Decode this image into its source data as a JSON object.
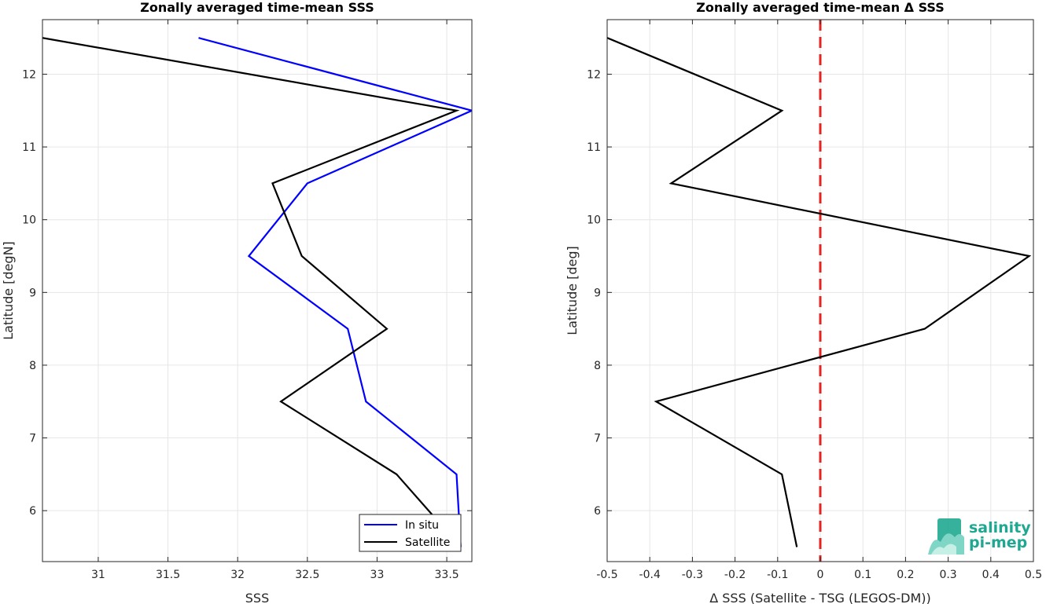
{
  "chart_data": [
    {
      "type": "line",
      "title": "Zonally averaged time-mean SSS",
      "xlabel": "SSS",
      "ylabel": "Latitude [degN]",
      "xlim": [
        30.6,
        33.68
      ],
      "ylim": [
        5.3,
        12.75
      ],
      "xticks": [
        31,
        31.5,
        32,
        32.5,
        33,
        33.5
      ],
      "xtick_labels": [
        "31",
        "31.5",
        "32",
        "32.5",
        "33",
        "33.5"
      ],
      "yticks": [
        6,
        7,
        8,
        9,
        10,
        11,
        12
      ],
      "ytick_labels": [
        "6",
        "7",
        "8",
        "9",
        "10",
        "11",
        "12"
      ],
      "grid": true,
      "legend_position": "bottom-right",
      "series": [
        {
          "name": "In situ",
          "color": "#0000ff",
          "x": [
            31.72,
            33.68,
            32.5,
            32.08,
            32.79,
            32.92,
            33.57,
            33.6
          ],
          "y": [
            12.5,
            11.5,
            10.5,
            9.5,
            8.5,
            7.5,
            6.5,
            5.5
          ]
        },
        {
          "name": "Satellite",
          "color": "#000000",
          "x": [
            30.6,
            33.57,
            32.25,
            32.46,
            33.07,
            32.31,
            33.14,
            33.6
          ],
          "y": [
            12.5,
            11.5,
            10.5,
            9.5,
            8.5,
            7.5,
            6.5,
            5.5
          ]
        }
      ]
    },
    {
      "type": "line",
      "title": "Zonally averaged time-mean Δ SSS",
      "xlabel": "Δ SSS (Satellite - TSG (LEGOS-DM))",
      "ylabel": "Latitude [deg]",
      "xlim": [
        -0.5,
        0.5
      ],
      "ylim": [
        5.3,
        12.75
      ],
      "xticks": [
        -0.5,
        -0.4,
        -0.3,
        -0.2,
        -0.1,
        0,
        0.1,
        0.2,
        0.3,
        0.4,
        0.5
      ],
      "xtick_labels": [
        "-0.5",
        "-0.4",
        "-0.3",
        "-0.2",
        "-0.1",
        "0",
        "0.1",
        "0.2",
        "0.3",
        "0.4",
        "0.5"
      ],
      "yticks": [
        6,
        7,
        8,
        9,
        10,
        11,
        12
      ],
      "ytick_labels": [
        "6",
        "7",
        "8",
        "9",
        "10",
        "11",
        "12"
      ],
      "grid": true,
      "series": [
        {
          "color": "#000000",
          "x": [
            -0.5,
            -0.09,
            -0.35,
            0.49,
            0.245,
            -0.385,
            -0.09,
            -0.055
          ],
          "y": [
            12.5,
            11.5,
            10.5,
            9.5,
            8.5,
            7.5,
            6.5,
            5.5
          ]
        }
      ],
      "reference_line": {
        "x": 0,
        "color": "#e8231f",
        "style": "dashed"
      }
    }
  ],
  "logo": {
    "line1": "salinity",
    "line2": "pi-mep",
    "color": "#1fa891"
  }
}
